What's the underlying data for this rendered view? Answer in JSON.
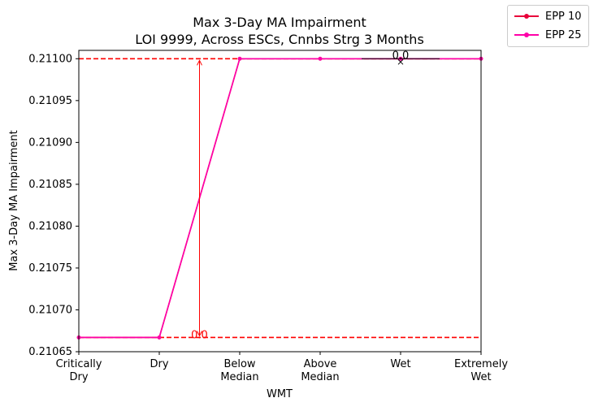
{
  "chart_data": {
    "type": "line",
    "title": "Max 3-Day MA Impairment",
    "subtitle": "LOI 9999, Across ESCs, Cnnbs Strg 3 Months",
    "xlabel": "WMT",
    "ylabel": "Max 3-Day MA Impairment",
    "categories": [
      "Critically\nDry",
      "Dry",
      "Below\nMedian",
      "Above\nMedian",
      "Wet",
      "Extremely\nWet"
    ],
    "ylim": [
      0.21065,
      0.21101
    ],
    "yticks": [
      "0.21065",
      "0.21070",
      "0.21075",
      "0.21080",
      "0.21085",
      "0.21090",
      "0.21095",
      "0.21100"
    ],
    "series": [
      {
        "name": "EPP 10",
        "color": "#e8003a",
        "values": [
          0.210667,
          0.210667,
          0.211,
          0.211,
          0.211,
          0.211
        ]
      },
      {
        "name": "EPP 25",
        "color": "#ff00a8",
        "values": [
          0.210667,
          0.210667,
          0.211,
          0.211,
          0.211,
          0.211
        ]
      }
    ],
    "reference_lines": [
      {
        "y": 0.211,
        "color": "#ff0000",
        "style": "dashed"
      },
      {
        "y": 0.210667,
        "color": "#ff0000",
        "style": "dashed"
      }
    ],
    "annotations": [
      {
        "text": "0.0",
        "x": 1.5,
        "y": 0.210667,
        "color": "#ff0000",
        "arrow_to": 0.211
      },
      {
        "text": "0.0",
        "x": 4.0,
        "y": 0.211,
        "color": "#000000",
        "marker": "x"
      }
    ],
    "legend_position": "outside top-right",
    "grid": false
  }
}
